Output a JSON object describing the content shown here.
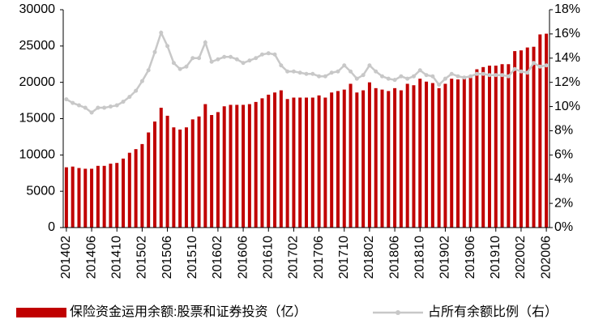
{
  "chart_data": {
    "type": "bar_line",
    "categories": [
      "201402",
      null,
      null,
      null,
      "201406",
      null,
      null,
      null,
      "201410",
      null,
      null,
      null,
      "201502",
      null,
      null,
      null,
      "201506",
      null,
      null,
      null,
      "201510",
      null,
      null,
      null,
      "201602",
      null,
      null,
      null,
      "201606",
      null,
      null,
      null,
      "201610",
      null,
      null,
      null,
      "201702",
      null,
      null,
      null,
      "201706",
      null,
      null,
      null,
      "201710",
      null,
      null,
      null,
      "201802",
      null,
      null,
      null,
      "201806",
      null,
      null,
      null,
      "201810",
      null,
      null,
      null,
      "201902",
      null,
      null,
      null,
      "201906",
      null,
      null,
      null,
      "201910",
      null,
      null,
      null,
      "202002",
      null,
      null,
      null,
      "202006"
    ],
    "series": [
      {
        "name": "保险资金运用余额:股票和证券投资（亿）",
        "color": "#c00000",
        "type": "bar",
        "values": [
          8300,
          8400,
          8200,
          8100,
          8100,
          8500,
          8500,
          8800,
          8900,
          9500,
          10300,
          10800,
          11500,
          13100,
          14600,
          16500,
          15400,
          13800,
          13500,
          13800,
          14900,
          15300,
          17000,
          15500,
          15900,
          16700,
          16900,
          16900,
          16900,
          17000,
          17300,
          17800,
          18300,
          18600,
          18900,
          17700,
          17900,
          17900,
          17900,
          17900,
          18200,
          17900,
          18600,
          18800,
          19000,
          19800,
          18600,
          18900,
          20000,
          19200,
          19000,
          18800,
          19200,
          18900,
          19800,
          19600,
          20500,
          20100,
          19900,
          19200,
          19800,
          20500,
          20400,
          20600,
          21000,
          21800,
          22100,
          22300,
          22300,
          22500,
          22500,
          24300,
          24400,
          24800,
          24900,
          26600,
          26700
        ]
      },
      {
        "name": "占所有余额比例（右）",
        "color": "#c8c8c8",
        "type": "line",
        "axis": "y2",
        "values": [
          10.6,
          10.3,
          10.1,
          9.9,
          9.5,
          9.9,
          9.9,
          10.0,
          10.1,
          10.4,
          10.8,
          11.3,
          12.1,
          13.0,
          14.5,
          16.1,
          15.0,
          13.6,
          13.1,
          13.3,
          14.0,
          14.0,
          15.3,
          13.7,
          13.9,
          14.1,
          14.1,
          13.9,
          13.6,
          13.8,
          14.0,
          14.3,
          14.4,
          14.3,
          13.4,
          12.9,
          12.9,
          12.8,
          12.7,
          12.7,
          12.5,
          12.5,
          12.8,
          12.9,
          13.4,
          12.9,
          12.3,
          12.6,
          13.4,
          12.9,
          12.5,
          12.3,
          12.2,
          12.5,
          12.3,
          12.5,
          13.0,
          12.6,
          12.5,
          11.8,
          12.3,
          12.7,
          12.5,
          12.4,
          12.5,
          12.7,
          12.7,
          12.6,
          12.6,
          12.6,
          12.5,
          13.1,
          12.9,
          12.8,
          13.6,
          13.3,
          13.4
        ]
      }
    ],
    "ylim": [
      0,
      30000
    ],
    "yticks": [
      0,
      5000,
      10000,
      15000,
      20000,
      25000,
      30000
    ],
    "y2lim": [
      0,
      18
    ],
    "y2ticks": [
      {
        "value": 0,
        "label": "0%"
      },
      {
        "value": 2,
        "label": "2%"
      },
      {
        "value": 4,
        "label": "4%"
      },
      {
        "value": 6,
        "label": "6%"
      },
      {
        "value": 8,
        "label": "8%"
      },
      {
        "value": 10,
        "label": "10%"
      },
      {
        "value": 12,
        "label": "12%"
      },
      {
        "value": 14,
        "label": "14%"
      },
      {
        "value": 16,
        "label": "16%"
      },
      {
        "value": 18,
        "label": "18%"
      }
    ],
    "legend": "bottom"
  }
}
